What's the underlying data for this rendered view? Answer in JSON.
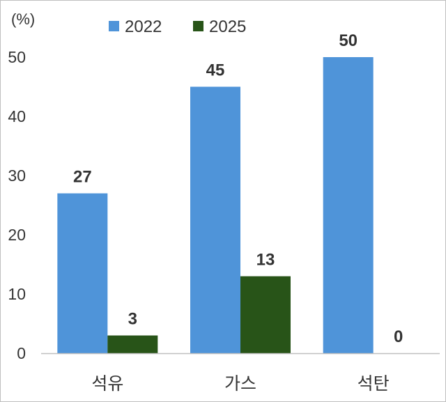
{
  "chart_data": {
    "type": "bar",
    "unit_label": "(%)",
    "categories": [
      "석유",
      "가스",
      "석탄"
    ],
    "series": [
      {
        "name": "2022",
        "values": [
          27,
          45,
          50
        ],
        "color": "#4f94d9"
      },
      {
        "name": "2025",
        "values": [
          3,
          13,
          0
        ],
        "color": "#285418"
      }
    ],
    "data_labels": [
      [
        "27",
        "45",
        "50"
      ],
      [
        "3",
        "13",
        "0"
      ]
    ],
    "yticks": [
      "0",
      "10",
      "20",
      "30",
      "40",
      "50"
    ],
    "ylim": [
      0,
      50
    ],
    "legend_position": "top",
    "grid": false,
    "axis_color": "#bfbfbf"
  }
}
